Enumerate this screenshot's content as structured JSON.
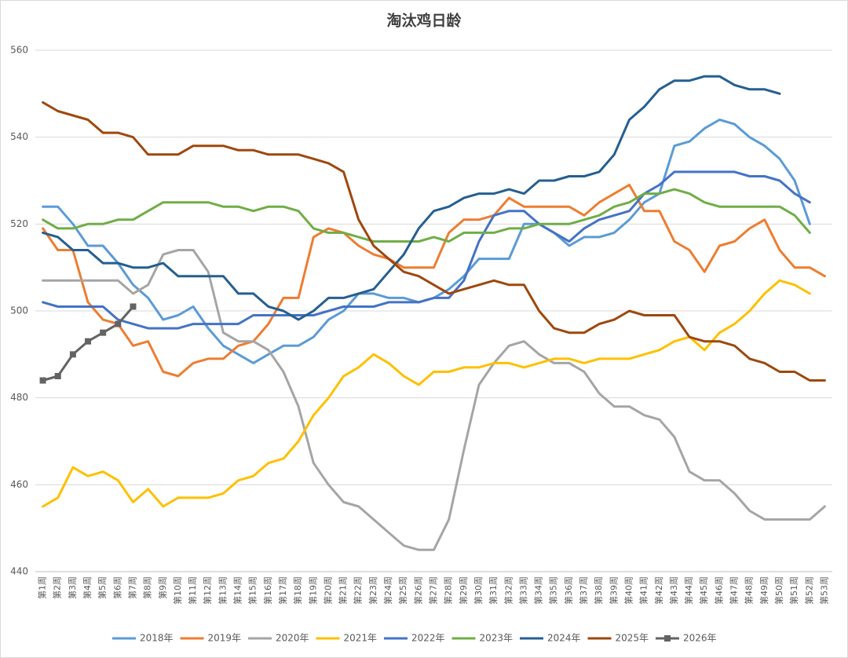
{
  "chart_data": {
    "type": "line",
    "title": "淘汰鸡日龄",
    "categories": [
      "第1周",
      "第2周",
      "第3周",
      "第4周",
      "第5周",
      "第6周",
      "第7周",
      "第8周",
      "第9周",
      "第10周",
      "第11周",
      "第12周",
      "第13周",
      "第14周",
      "第15周",
      "第16周",
      "第17周",
      "第18周",
      "第19周",
      "第20周",
      "第21周",
      "第22周",
      "第23周",
      "第24周",
      "第25周",
      "第26周",
      "第27周",
      "第28周",
      "第29周",
      "第30周",
      "第31周",
      "第32周",
      "第33周",
      "第34周",
      "第35周",
      "第36周",
      "第37周",
      "第38周",
      "第39周",
      "第40周",
      "第41周",
      "第42周",
      "第43周",
      "第44周",
      "第45周",
      "第46周",
      "第47周",
      "第48周",
      "第49周",
      "第50周",
      "第51周",
      "第52周",
      "第53周"
    ],
    "ylim": [
      440,
      560
    ],
    "yticks": [
      440,
      460,
      480,
      500,
      520,
      540,
      560
    ],
    "grid": true,
    "series": [
      {
        "name": "2018年",
        "color": "#5B9BD5",
        "values": [
          524,
          524,
          520,
          515,
          515,
          511,
          506,
          503,
          498,
          499,
          501,
          496,
          492,
          490,
          488,
          490,
          492,
          492,
          494,
          498,
          500,
          504,
          504,
          503,
          503,
          502,
          503,
          505,
          508,
          512,
          512,
          512,
          520,
          520,
          518,
          515,
          517,
          517,
          518,
          521,
          525,
          527,
          538,
          539,
          542,
          544,
          543,
          540,
          538,
          535,
          530,
          520,
          null
        ]
      },
      {
        "name": "2019年",
        "color": "#ED7D31",
        "values": [
          519,
          514,
          514,
          502,
          498,
          497,
          492,
          493,
          486,
          485,
          488,
          489,
          489,
          492,
          493,
          497,
          503,
          503,
          517,
          519,
          518,
          515,
          513,
          512,
          510,
          510,
          510,
          518,
          521,
          521,
          522,
          526,
          524,
          524,
          524,
          524,
          522,
          525,
          527,
          529,
          523,
          523,
          516,
          514,
          509,
          515,
          516,
          519,
          521,
          514,
          510,
          510,
          508
        ]
      },
      {
        "name": "2020年",
        "color": "#A5A5A5",
        "values": [
          507,
          507,
          507,
          507,
          507,
          507,
          504,
          506,
          513,
          514,
          514,
          509,
          495,
          493,
          493,
          491,
          486,
          478,
          465,
          460,
          456,
          455,
          452,
          449,
          446,
          445,
          445,
          452,
          468,
          483,
          488,
          492,
          493,
          490,
          488,
          488,
          486,
          481,
          478,
          478,
          476,
          475,
          471,
          463,
          461,
          461,
          458,
          454,
          452,
          452,
          452,
          452,
          455
        ]
      },
      {
        "name": "2021年",
        "color": "#FFC000",
        "values": [
          455,
          457,
          464,
          462,
          463,
          461,
          456,
          459,
          455,
          457,
          457,
          457,
          458,
          461,
          462,
          465,
          466,
          470,
          476,
          480,
          485,
          487,
          490,
          488,
          485,
          483,
          486,
          486,
          487,
          487,
          488,
          488,
          487,
          488,
          489,
          489,
          488,
          489,
          489,
          489,
          490,
          491,
          493,
          494,
          491,
          495,
          497,
          500,
          504,
          507,
          506,
          504,
          null
        ]
      },
      {
        "name": "2022年",
        "color": "#4472C4",
        "values": [
          502,
          501,
          501,
          501,
          501,
          498,
          497,
          496,
          496,
          496,
          497,
          497,
          497,
          497,
          499,
          499,
          499,
          499,
          499,
          500,
          501,
          501,
          501,
          502,
          502,
          502,
          503,
          503,
          507,
          516,
          522,
          523,
          523,
          520,
          518,
          516,
          519,
          521,
          522,
          523,
          527,
          529,
          532,
          532,
          532,
          532,
          532,
          531,
          531,
          530,
          527,
          525,
          null
        ]
      },
      {
        "name": "2023年",
        "color": "#70AD47",
        "values": [
          521,
          519,
          519,
          520,
          520,
          521,
          521,
          523,
          525,
          525,
          525,
          525,
          524,
          524,
          523,
          524,
          524,
          523,
          519,
          518,
          518,
          517,
          516,
          516,
          516,
          516,
          517,
          516,
          518,
          518,
          518,
          519,
          519,
          520,
          520,
          520,
          521,
          522,
          524,
          525,
          527,
          527,
          528,
          527,
          525,
          524,
          524,
          524,
          524,
          524,
          522,
          518,
          null
        ]
      },
      {
        "name": "2024年",
        "color": "#255E91",
        "values": [
          518,
          517,
          514,
          514,
          511,
          511,
          510,
          510,
          511,
          508,
          508,
          508,
          508,
          504,
          504,
          501,
          500,
          498,
          500,
          503,
          503,
          504,
          505,
          509,
          513,
          519,
          523,
          524,
          526,
          527,
          527,
          528,
          527,
          530,
          530,
          531,
          531,
          532,
          536,
          544,
          547,
          551,
          553,
          553,
          554,
          554,
          552,
          551,
          551,
          550,
          null,
          null,
          null
        ]
      },
      {
        "name": "2025年",
        "color": "#9E480E",
        "values": [
          548,
          546,
          545,
          544,
          541,
          541,
          540,
          536,
          536,
          536,
          538,
          538,
          538,
          537,
          537,
          536,
          536,
          536,
          535,
          534,
          532,
          521,
          515,
          512,
          509,
          508,
          506,
          504,
          505,
          506,
          507,
          506,
          506,
          500,
          496,
          495,
          495,
          497,
          498,
          500,
          499,
          499,
          499,
          494,
          493,
          493,
          492,
          489,
          488,
          486,
          486,
          484,
          484
        ]
      },
      {
        "name": "2026年",
        "color": "#636363",
        "marker": "square",
        "values": [
          484,
          485,
          490,
          493,
          495,
          497,
          501,
          null,
          null,
          null,
          null,
          null,
          null,
          null,
          null,
          null,
          null,
          null,
          null,
          null,
          null,
          null,
          null,
          null,
          null,
          null,
          null,
          null,
          null,
          null,
          null,
          null,
          null,
          null,
          null,
          null,
          null,
          null,
          null,
          null,
          null,
          null,
          null,
          null,
          null,
          null,
          null,
          null,
          null,
          null,
          null,
          null,
          null
        ]
      }
    ]
  }
}
